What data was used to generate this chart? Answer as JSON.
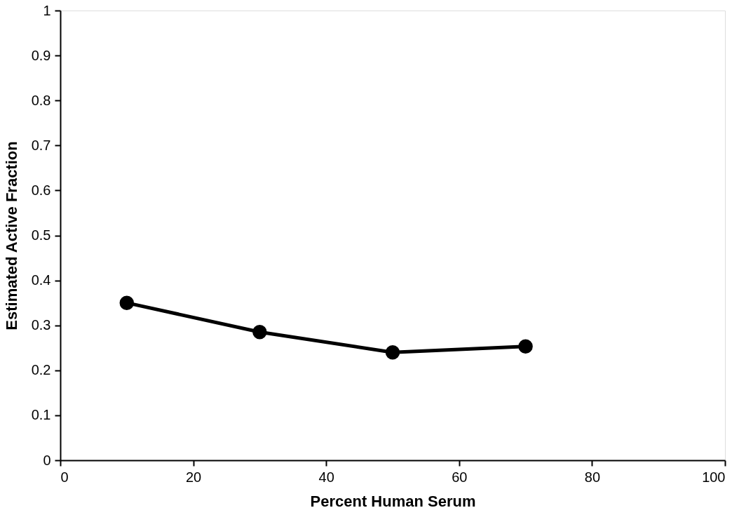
{
  "chart_data": {
    "type": "line",
    "xlabel": "Percent Human Serum",
    "ylabel": "Estimated Active Fraction",
    "x": [
      10,
      30,
      50,
      70
    ],
    "series": [
      {
        "color": "#000000",
        "values": [
          0.35,
          0.285,
          0.24,
          0.253
        ]
      }
    ],
    "xlim": [
      0,
      100
    ],
    "xticks": [
      0,
      20,
      40,
      60,
      80,
      100
    ],
    "ylim": [
      0,
      1
    ],
    "yticks": [
      0,
      0.1,
      0.2,
      0.3,
      0.4,
      0.5,
      0.6,
      0.7,
      0.8,
      0.9,
      1
    ],
    "grid": false,
    "legend": false,
    "marker": "circle",
    "line_style": "solid"
  }
}
